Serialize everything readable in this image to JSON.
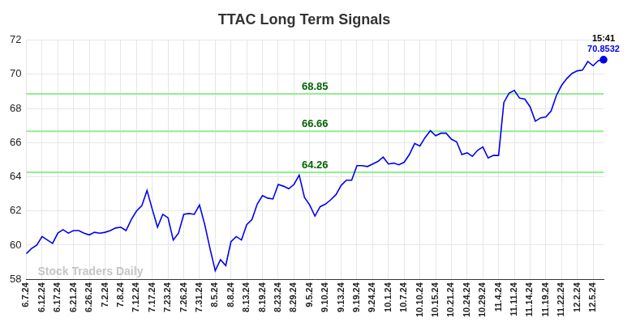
{
  "chart_data": {
    "type": "line",
    "title": "TTAC Long Term Signals",
    "watermark": "Stock Traders Daily",
    "categories": [
      "6.7.24",
      null,
      null,
      "6.12.24",
      null,
      null,
      "6.17.24",
      null,
      null,
      "6.21.24",
      null,
      null,
      "6.26.24",
      null,
      null,
      "7.2.24",
      null,
      null,
      "7.8.24",
      null,
      null,
      "7.12.24",
      null,
      null,
      "7.17.24",
      null,
      null,
      "7.23.24",
      null,
      null,
      "7.26.24",
      null,
      null,
      "7.31.24",
      null,
      null,
      "8.5.24",
      null,
      null,
      "8.8.24",
      null,
      null,
      "8.13.24",
      null,
      null,
      "8.19.24",
      null,
      null,
      "8.23.24",
      null,
      null,
      "8.29.24",
      null,
      null,
      "9.5.24",
      null,
      null,
      "9.10.24",
      null,
      null,
      "9.13.24",
      null,
      null,
      "9.19.24",
      null,
      null,
      "9.24.24",
      null,
      null,
      "10.1.24",
      null,
      null,
      "10.7.24",
      null,
      null,
      "10.10.24",
      null,
      null,
      "10.15.24",
      null,
      null,
      "10.21.24",
      null,
      null,
      "10.24.24",
      null,
      null,
      "10.29.24",
      null,
      null,
      "11.4.24",
      null,
      null,
      "11.11.24",
      null,
      null,
      "11.14.24",
      null,
      null,
      "11.19.24",
      null,
      null,
      "11.22.24",
      null,
      null,
      "12.2.24",
      null,
      null,
      "12.5.24",
      null,
      null
    ],
    "values": [
      59.5,
      59.8,
      60.0,
      60.5,
      60.3,
      60.1,
      60.7,
      60.9,
      60.7,
      60.85,
      60.85,
      60.7,
      60.6,
      60.75,
      60.7,
      60.75,
      60.85,
      61.0,
      61.05,
      60.85,
      61.5,
      62.0,
      62.3,
      63.2,
      62.1,
      61.05,
      61.8,
      61.6,
      60.3,
      60.7,
      61.8,
      61.85,
      61.8,
      62.35,
      61.2,
      59.8,
      58.5,
      59.15,
      58.8,
      60.2,
      60.5,
      60.3,
      61.2,
      61.5,
      62.4,
      62.9,
      62.75,
      62.7,
      63.55,
      63.45,
      63.3,
      63.55,
      64.1,
      62.8,
      62.35,
      61.7,
      62.25,
      62.4,
      62.65,
      62.95,
      63.5,
      63.8,
      63.8,
      64.65,
      64.65,
      64.6,
      64.75,
      64.9,
      65.15,
      64.75,
      64.8,
      64.7,
      64.85,
      65.3,
      65.95,
      65.8,
      66.3,
      66.7,
      66.4,
      66.55,
      66.55,
      66.2,
      66.05,
      65.3,
      65.4,
      65.2,
      65.55,
      65.75,
      65.1,
      65.25,
      65.25,
      68.35,
      68.9,
      69.05,
      68.6,
      68.55,
      68.1,
      67.25,
      67.45,
      67.5,
      67.85,
      68.75,
      69.35,
      69.75,
      70.05,
      70.2,
      70.25,
      70.75,
      70.5,
      70.8,
      70.8532
    ],
    "color": "#0000ee",
    "ylim": [
      58,
      72
    ],
    "yticks": [
      58,
      60,
      62,
      64,
      66,
      68,
      70,
      72
    ],
    "grid": true,
    "levels": [
      68.85,
      66.66,
      64.26
    ],
    "last_point_time": "15:41"
  }
}
